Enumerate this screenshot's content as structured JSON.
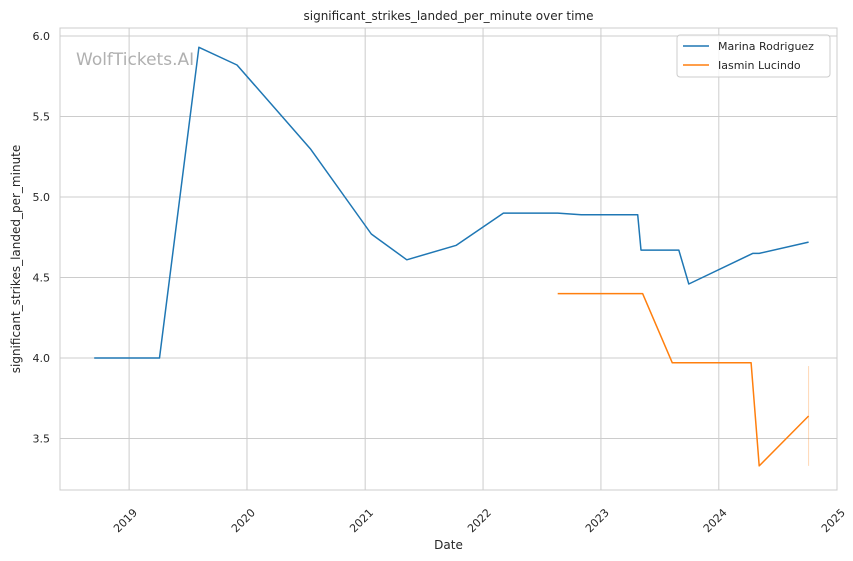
{
  "chart_data": {
    "type": "line",
    "title": "significant_strikes_landed_per_minute over time",
    "xlabel": "Date",
    "ylabel": "significant_strikes_landed_per_minute",
    "watermark": "WolfTickets.AI",
    "xlim": [
      "2018-06-01",
      "2025-01-01"
    ],
    "ylim": [
      3.18,
      6.05
    ],
    "x_ticks": [
      "2019-01-01",
      "2020-01-01",
      "2021-01-01",
      "2022-01-01",
      "2023-01-01",
      "2024-01-01",
      "2025-01-01"
    ],
    "x_tick_labels": [
      "2019",
      "2020",
      "2021",
      "2022",
      "2023",
      "2024",
      "2025"
    ],
    "y_ticks": [
      3.5,
      4.0,
      4.5,
      5.0,
      5.5,
      6.0
    ],
    "y_tick_labels": [
      "3.5",
      "4.0",
      "4.5",
      "5.0",
      "5.5",
      "6.0"
    ],
    "grid": true,
    "legend_position": "top-right",
    "series": [
      {
        "name": "Marina Rodriguez",
        "color": "#1f77b4",
        "x": [
          "2018-09-15",
          "2019-04-05",
          "2019-08-05",
          "2019-12-01",
          "2020-07-15",
          "2021-01-20",
          "2021-05-10",
          "2021-10-10",
          "2022-03-05",
          "2022-08-20",
          "2022-11-01",
          "2023-04-25",
          "2023-05-05",
          "2023-08-30",
          "2023-09-30",
          "2024-04-15",
          "2024-05-05",
          "2024-10-05"
        ],
        "y": [
          4.0,
          4.0,
          5.93,
          5.82,
          5.3,
          4.77,
          4.61,
          4.7,
          4.9,
          4.9,
          4.89,
          4.89,
          4.67,
          4.67,
          4.46,
          4.65,
          4.65,
          4.72
        ]
      },
      {
        "name": "Iasmin Lucindo",
        "color": "#ff7f0e",
        "x": [
          "2022-08-20",
          "2023-05-10",
          "2023-08-10",
          "2024-04-10",
          "2024-05-05",
          "2024-10-05"
        ],
        "y": [
          4.4,
          4.4,
          3.97,
          3.97,
          3.33,
          3.64
        ]
      }
    ],
    "errorbar": {
      "x": "2024-10-05",
      "y_low": 3.33,
      "y_high": 3.95,
      "color": "#ff7f0e"
    }
  }
}
